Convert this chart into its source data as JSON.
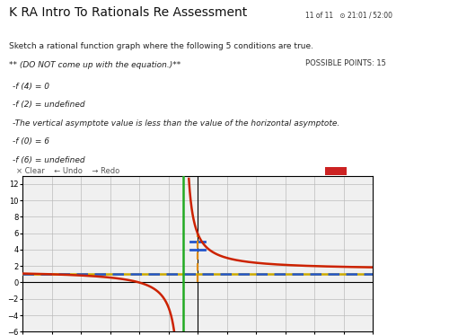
{
  "title": "K RA Intro To Rationals Re Assessment",
  "subtitle": "Sketch a rational function graph where the following 5 conditions are true.",
  "note": "** (DO NOT come up with the equation.)**",
  "conditions": [
    "-f (4) = 0",
    "-f (2) = undefined",
    "-The vertical asymptote value is less than the value of the horizontal asymptote.",
    "-f (0) = 6",
    "-f (6) = undefined"
  ],
  "top_right": "11 of 11",
  "top_right2": "21:01 / 52:00",
  "possible_points": "POSSIBLE POINTS: 15",
  "xmin": -12,
  "xmax": 12,
  "ymin": -6,
  "ymax": 13,
  "xtick_step": 2,
  "ytick_step": 2,
  "vertical_asymptote_x": -1,
  "horizontal_asymptote_y": 1,
  "blue_dashed_y": 1,
  "blue_tick_y1": 5,
  "blue_tick_y2": 4,
  "green_color": "#22aa22",
  "red_color": "#cc2200",
  "blue_color": "#2255cc",
  "yellow_color": "#ccaa00",
  "orange_color": "#dd8800",
  "bg_graph": "#f0f0f0",
  "bg_page": "#ffffff",
  "grid_color": "#bbbbbb",
  "toolbar_bg": "#e8e8e8"
}
